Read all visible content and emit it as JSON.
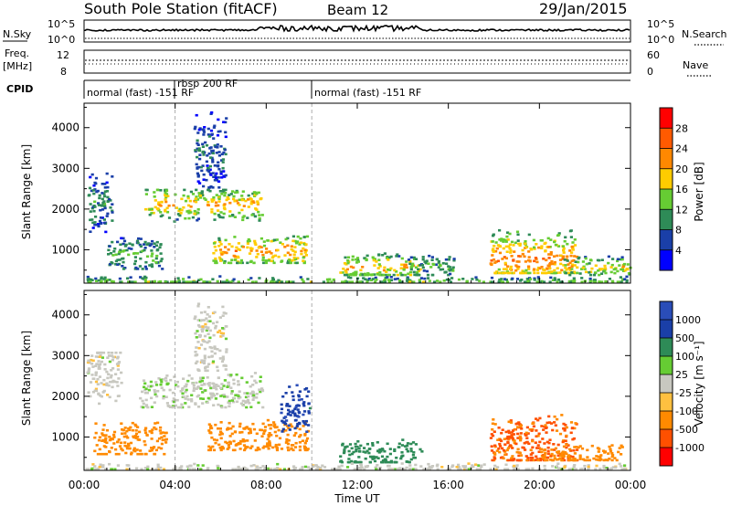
{
  "header": {
    "title": "South Pole Station (fitACF)",
    "beam": "Beam 12",
    "date": "29/Jan/2015"
  },
  "top_panels": {
    "nsky_label": "N.Sky",
    "nsearch_label": "N.Search",
    "nsky_ticks": [
      "10^5",
      "10^0"
    ],
    "nsearch_ticks": [
      "10^5",
      "10^0"
    ],
    "freq_label_1": "Freq.",
    "freq_label_2": "[MHz]",
    "freq_ticks": [
      "12",
      "8"
    ],
    "nave_label": "Nave",
    "nave_ticks": [
      "60",
      "0"
    ],
    "cpid_label": "CPID",
    "cpid_segments": [
      {
        "text": "normal (fast) -151 RF",
        "start_hour": 0,
        "end_hour": 4
      },
      {
        "text": "rbsp 200 RF",
        "start_hour": 4,
        "end_hour": 10
      },
      {
        "text": "normal (fast) -151 RF",
        "start_hour": 10,
        "end_hour": 24
      }
    ]
  },
  "chart_data": [
    {
      "type": "heatmap",
      "parameter": "Power",
      "xlabel": "",
      "ylabel": "Slant Range [km]",
      "xlim": [
        0,
        24
      ],
      "ylim": [
        180,
        4600
      ],
      "y_ticks": [
        1000,
        2000,
        3000,
        4000
      ],
      "colorbar": {
        "label": "Power [dB]",
        "ticks": [
          "28",
          "24",
          "20",
          "16",
          "12",
          "8",
          "4"
        ],
        "levels": [
          4,
          8,
          12,
          16,
          20,
          24,
          28
        ],
        "colors": [
          "#0000ff",
          "#1a3fa8",
          "#2e8b57",
          "#66cc33",
          "#ffcc00",
          "#ff8800",
          "#ff5a00",
          "#ff0000"
        ]
      },
      "features": [
        {
          "start_hour": 0.1,
          "end_hour": 1.2,
          "range_min": 1400,
          "range_max": 2900,
          "peak_range": 2200,
          "peak": 10
        },
        {
          "start_hour": 1.0,
          "end_hour": 3.4,
          "range_min": 500,
          "range_max": 1400,
          "peak_range": 900,
          "peak": 13
        },
        {
          "start_hour": 2.6,
          "end_hour": 7.8,
          "range_min": 1650,
          "range_max": 2500,
          "peak_range": 2150,
          "peak": 21
        },
        {
          "start_hour": 4.8,
          "end_hour": 6.2,
          "range_min": 2500,
          "range_max": 4400,
          "peak_range": 3400,
          "peak": 8
        },
        {
          "start_hour": 5.6,
          "end_hour": 9.8,
          "range_min": 650,
          "range_max": 1500,
          "peak_range": 1000,
          "peak": 22
        },
        {
          "start_hour": 11.2,
          "end_hour": 14.8,
          "range_min": 350,
          "range_max": 1050,
          "peak_range": 600,
          "peak": 20
        },
        {
          "start_hour": 14.2,
          "end_hour": 16.2,
          "range_min": 350,
          "range_max": 1000,
          "peak_range": 600,
          "peak": 12
        },
        {
          "start_hour": 17.8,
          "end_hour": 21.6,
          "range_min": 400,
          "range_max": 1800,
          "peak_range": 800,
          "peak": 24
        },
        {
          "start_hour": 21.0,
          "end_hour": 24.0,
          "range_min": 350,
          "range_max": 900,
          "peak_range": 600,
          "peak": 18
        },
        {
          "start_hour": 0.0,
          "end_hour": 24.0,
          "range_min": 180,
          "range_max": 420,
          "peak_range": 250,
          "peak": 14
        }
      ]
    },
    {
      "type": "heatmap",
      "parameter": "Velocity",
      "xlabel": "Time UT",
      "ylabel": "Slant Range [km]",
      "xlim": [
        0,
        24
      ],
      "ylim": [
        180,
        4600
      ],
      "x_ticks": [
        "00:00",
        "04:00",
        "08:00",
        "12:00",
        "16:00",
        "20:00",
        "00:00"
      ],
      "y_ticks": [
        1000,
        2000,
        3000,
        4000
      ],
      "colorbar": {
        "label": "Velocity [m s⁻¹]",
        "ticks": [
          "1000",
          "500",
          "100",
          "25",
          "-25",
          "-100",
          "-500",
          "-1000"
        ],
        "levels": [
          1000,
          500,
          100,
          25,
          -25,
          -100,
          -500,
          -1000
        ],
        "colors": [
          "#2a4db8",
          "#1a3fa8",
          "#2e8b57",
          "#66cc33",
          "#c8c8c0",
          "#ffc040",
          "#ff8a00",
          "#ff5000",
          "#ff0000"
        ]
      },
      "features": [
        {
          "start_hour": 0.1,
          "end_hour": 1.6,
          "range_min": 1700,
          "range_max": 3100,
          "peak_range": 2600,
          "peak": 0
        },
        {
          "start_hour": 0.4,
          "end_hour": 3.6,
          "range_min": 550,
          "range_max": 1450,
          "peak_range": 900,
          "peak": -300
        },
        {
          "start_hour": 2.4,
          "end_hour": 7.8,
          "range_min": 1700,
          "range_max": 2600,
          "peak_range": 2150,
          "peak": 10
        },
        {
          "start_hour": 4.8,
          "end_hour": 6.2,
          "range_min": 2600,
          "range_max": 4300,
          "peak_range": 3400,
          "peak": 0
        },
        {
          "start_hour": 5.4,
          "end_hour": 9.8,
          "range_min": 650,
          "range_max": 1500,
          "peak_range": 1000,
          "peak": -350
        },
        {
          "start_hour": 8.6,
          "end_hour": 9.9,
          "range_min": 1100,
          "range_max": 2300,
          "peak_range": 1700,
          "peak": 800
        },
        {
          "start_hour": 11.2,
          "end_hour": 14.8,
          "range_min": 350,
          "range_max": 1050,
          "peak_range": 600,
          "peak": 300
        },
        {
          "start_hour": 17.8,
          "end_hour": 21.6,
          "range_min": 400,
          "range_max": 1700,
          "peak_range": 900,
          "peak": -600
        },
        {
          "start_hour": 20.0,
          "end_hour": 23.6,
          "range_min": 400,
          "range_max": 900,
          "peak_range": 600,
          "peak": -300
        },
        {
          "start_hour": 0.0,
          "end_hour": 24.0,
          "range_min": 180,
          "range_max": 420,
          "peak_range": 250,
          "peak": 0
        }
      ]
    }
  ]
}
